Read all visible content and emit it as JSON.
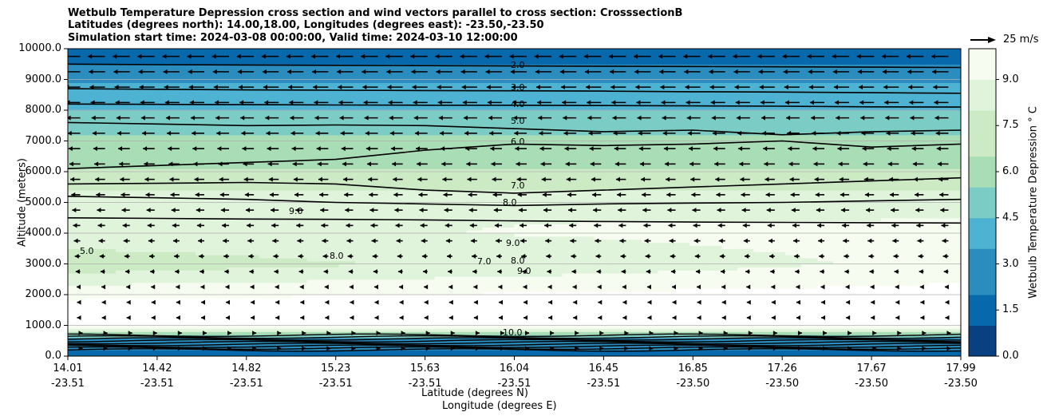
{
  "chart_data": {
    "type": "contourf",
    "title_lines": [
      "Wetbulb Temperature Depression cross section and wind vectors parallel to cross section: CrosssectionB",
      "Latitudes (degrees north): 14.00,18.00, Longitudes (degrees east): -23.50,-23.50",
      "Simulation start time: 2024-03-08 00:00:00, Valid time: 2024-03-10 12:00:00"
    ],
    "ylabel": "Altitude (meters)",
    "xlabel_lat": "Latitude (degrees N)",
    "xlabel_lon": "Longitude (degrees E)",
    "ylim": [
      0,
      10000
    ],
    "yticks": [
      "0.0",
      "1000.0",
      "2000.0",
      "3000.0",
      "4000.0",
      "5000.0",
      "6000.0",
      "7000.0",
      "8000.0",
      "9000.0",
      "10000.0"
    ],
    "xticks": [
      {
        "lat": "14.01",
        "lon": "-23.51"
      },
      {
        "lat": "14.42",
        "lon": "-23.51"
      },
      {
        "lat": "14.82",
        "lon": "-23.51"
      },
      {
        "lat": "15.23",
        "lon": "-23.51"
      },
      {
        "lat": "15.63",
        "lon": "-23.51"
      },
      {
        "lat": "16.04",
        "lon": "-23.51"
      },
      {
        "lat": "16.45",
        "lon": "-23.51"
      },
      {
        "lat": "16.85",
        "lon": "-23.50"
      },
      {
        "lat": "17.26",
        "lon": "-23.50"
      },
      {
        "lat": "17.67",
        "lon": "-23.50"
      },
      {
        "lat": "17.99",
        "lon": "-23.50"
      }
    ],
    "colorbar": {
      "label": "Wetbulb Temperature Depression $^\\circ$C",
      "label_display": "Wetbulb Temperature Depression ° C",
      "ticks": [
        "0.0",
        "1.5",
        "3.0",
        "4.5",
        "6.0",
        "7.5",
        "9.0"
      ],
      "range": [
        0,
        10
      ],
      "colors": [
        "#084081",
        "#0868ac",
        "#2b8cbe",
        "#4eb3d3",
        "#7bccc4",
        "#a8ddb5",
        "#ccebc5",
        "#e0f3db",
        "#f7fcf0"
      ]
    },
    "vector_key": "25 m/s",
    "grid": "horizontal",
    "contour_labels": [
      "2.0",
      "3.0",
      "4.0",
      "5.0",
      "6.0",
      "7.0",
      "8.0",
      "9.0",
      "9.0",
      "8.0",
      "7.0",
      "8.0",
      "9.0",
      "5.0",
      "10.0"
    ],
    "profile_levels": [
      0,
      500,
      1000,
      2000,
      3000,
      4000,
      5000,
      6000,
      7000,
      8000,
      9000,
      10000
    ],
    "profile_values": [
      2.0,
      2.5,
      10.5,
      10.5,
      9.2,
      9.3,
      8.4,
      6.8,
      5.8,
      4.5,
      3.2,
      1.2
    ],
    "contour_lines": [
      {
        "level": 2.0,
        "y": [
          9500,
          9480,
          9470,
          9460,
          9450,
          9440,
          9430,
          9420,
          9410,
          9400,
          9390
        ]
      },
      {
        "level": 3.0,
        "y": [
          8700,
          8680,
          8660,
          8650,
          8640,
          8630,
          8620,
          8600,
          8590,
          8570,
          8550
        ]
      },
      {
        "level": 4.0,
        "y": [
          8200,
          8190,
          8180,
          8170,
          8160,
          8160,
          8150,
          8140,
          8130,
          8110,
          8100
        ]
      },
      {
        "level": 5.0,
        "y": [
          7600,
          7550,
          7500,
          7520,
          7500,
          7400,
          7300,
          7350,
          7200,
          7300,
          7350
        ]
      },
      {
        "level": 6.0,
        "y": [
          6100,
          6200,
          6300,
          6400,
          6700,
          6900,
          6850,
          6900,
          7000,
          6800,
          6900
        ]
      },
      {
        "level": 7.0,
        "y": [
          5600,
          5620,
          5650,
          5600,
          5400,
          5300,
          5400,
          5500,
          5600,
          5700,
          5800
        ]
      },
      {
        "level": 8.0,
        "y": [
          5200,
          5150,
          5100,
          5000,
          4950,
          4900,
          4950,
          4980,
          5000,
          5050,
          5100
        ]
      },
      {
        "level": 9.0,
        "y": [
          4500,
          4480,
          4460,
          4450,
          4430,
          4400,
          4380,
          4360,
          4350,
          4340,
          4330
        ]
      }
    ],
    "winds": {
      "upper_x": [
        -12,
        -10,
        -8,
        -5,
        -3,
        -2,
        -2,
        -1,
        -1,
        -1,
        -1
      ],
      "level_keys": "altitude rows from 10000 down to 0 m"
    }
  }
}
